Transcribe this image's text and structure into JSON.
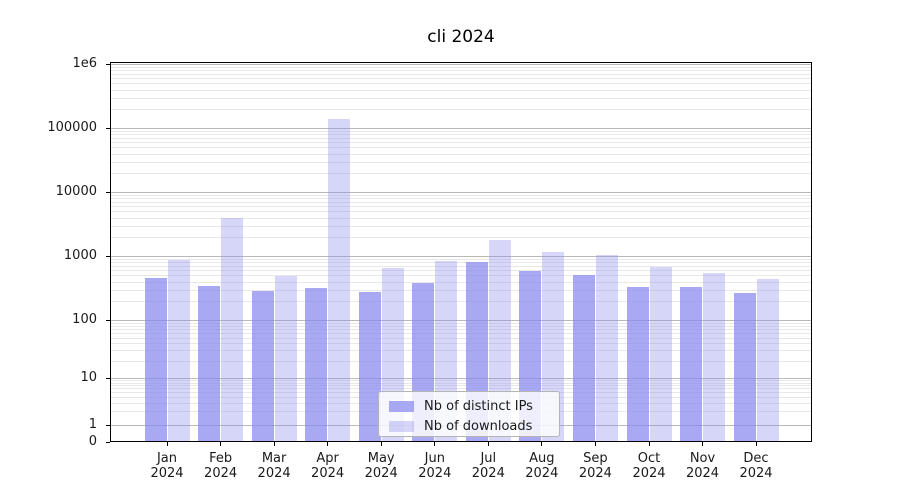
{
  "figure": {
    "background": "#ffffff"
  },
  "chart_data": {
    "type": "bar",
    "title": "cli 2024",
    "xlabel": "",
    "ylabel": "",
    "yscale": "symlog",
    "ylim": [
      0,
      1000000
    ],
    "grid": true,
    "legend_position": "lower center",
    "categories": [
      "Jan",
      "Feb",
      "Mar",
      "Apr",
      "May",
      "Jun",
      "Jul",
      "Aug",
      "Sep",
      "Oct",
      "Nov",
      "Dec"
    ],
    "year_label": "2024",
    "series": [
      {
        "name": "Nb of distinct IPs",
        "color": "rgba(136,136,238,0.72)",
        "values": [
          460,
          345,
          285,
          315,
          270,
          385,
          800,
          590,
          500,
          330,
          330,
          265
        ]
      },
      {
        "name": "Nb of downloads",
        "color": "rgba(136,136,238,0.34)",
        "values": [
          860,
          3900,
          480,
          140000,
          660,
          830,
          1750,
          1150,
          1030,
          680,
          540,
          440
        ]
      }
    ],
    "y_ticks": [
      {
        "value": 0,
        "label": "0"
      },
      {
        "value": 1,
        "label": "1"
      },
      {
        "value": 10,
        "label": "10"
      },
      {
        "value": 100,
        "label": "100"
      },
      {
        "value": 1000,
        "label": "1000"
      },
      {
        "value": 10000,
        "label": "10000"
      },
      {
        "value": 100000,
        "label": "100000"
      },
      {
        "value": 1000000,
        "label": "1e6"
      }
    ],
    "colors": {
      "grid_major": "#b9b9b9",
      "grid_minor": "#e8e8e8",
      "spine": "#000000",
      "text": "#1a1a1a"
    }
  }
}
